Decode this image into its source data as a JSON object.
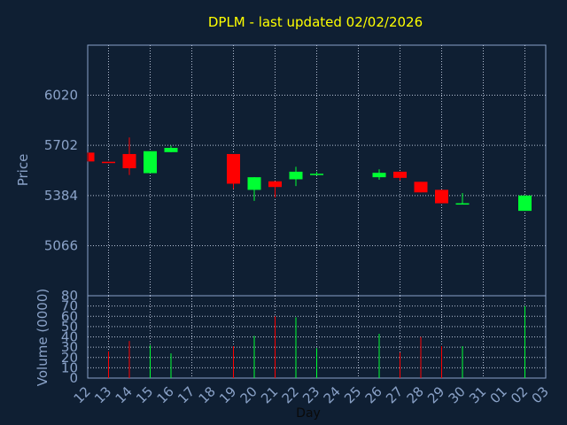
{
  "colors": {
    "background": "#0f1f33",
    "plot_border": "#8aa2c8",
    "grid": "#c8d2e6",
    "up": "#00ff33",
    "down": "#ff0000",
    "title": "#ffff00",
    "text": "#8aa2c8"
  },
  "chart_data": {
    "type": "candlestick",
    "title": "DPLM - last updated 02/02/2026",
    "xlabel": "Day",
    "ylabel_price": "Price",
    "ylabel_volume": "Volume (0000)",
    "x_ticks": [
      "12",
      "13",
      "14",
      "15",
      "16",
      "17",
      "18",
      "19",
      "20",
      "21",
      "22",
      "23",
      "24",
      "25",
      "26",
      "27",
      "28",
      "29",
      "30",
      "31",
      "01",
      "02",
      "03"
    ],
    "price_ticks": [
      5066,
      5384,
      5702,
      6020
    ],
    "price_ylim": [
      4749,
      6337
    ],
    "volume_ticks": [
      0,
      10,
      20,
      30,
      40,
      50,
      60,
      70,
      80
    ],
    "volume_ylim": [
      0,
      80
    ],
    "grid": true,
    "candles": [
      {
        "x": "12",
        "open": 5656,
        "high": 5656,
        "low": 5600,
        "close": 5600,
        "volume": 0
      },
      {
        "x": "13",
        "open": 5598,
        "high": 5598,
        "low": 5590,
        "close": 5592,
        "volume": 26
      },
      {
        "x": "14",
        "open": 5647,
        "high": 5752,
        "low": 5514,
        "close": 5557,
        "volume": 36
      },
      {
        "x": "15",
        "open": 5526,
        "high": 5665,
        "low": 5526,
        "close": 5665,
        "volume": 32
      },
      {
        "x": "16",
        "open": 5659,
        "high": 5700,
        "low": 5659,
        "close": 5686,
        "volume": 24
      },
      {
        "x": "19",
        "open": 5647,
        "high": 5647,
        "low": 5426,
        "close": 5459,
        "volume": 31
      },
      {
        "x": "20",
        "open": 5420,
        "high": 5500,
        "low": 5350,
        "close": 5500,
        "volume": 41
      },
      {
        "x": "21",
        "open": 5474,
        "high": 5474,
        "low": 5371,
        "close": 5438,
        "volume": 60
      },
      {
        "x": "22",
        "open": 5487,
        "high": 5566,
        "low": 5444,
        "close": 5535,
        "volume": 59
      },
      {
        "x": "23",
        "open": 5517,
        "high": 5535,
        "low": 5517,
        "close": 5522,
        "volume": 29
      },
      {
        "x": "26",
        "open": 5500,
        "high": 5550,
        "low": 5484,
        "close": 5528,
        "volume": 43
      },
      {
        "x": "27",
        "open": 5535,
        "high": 5535,
        "low": 5480,
        "close": 5496,
        "volume": 25
      },
      {
        "x": "28",
        "open": 5471,
        "high": 5471,
        "low": 5404,
        "close": 5404,
        "volume": 40
      },
      {
        "x": "29",
        "open": 5420,
        "high": 5420,
        "low": 5335,
        "close": 5335,
        "volume": 31
      },
      {
        "x": "30",
        "open": 5330,
        "high": 5400,
        "low": 5330,
        "close": 5335,
        "volume": 31
      },
      {
        "x": "02",
        "open": 5287,
        "high": 5384,
        "low": 5287,
        "close": 5384,
        "volume": 70
      }
    ]
  }
}
